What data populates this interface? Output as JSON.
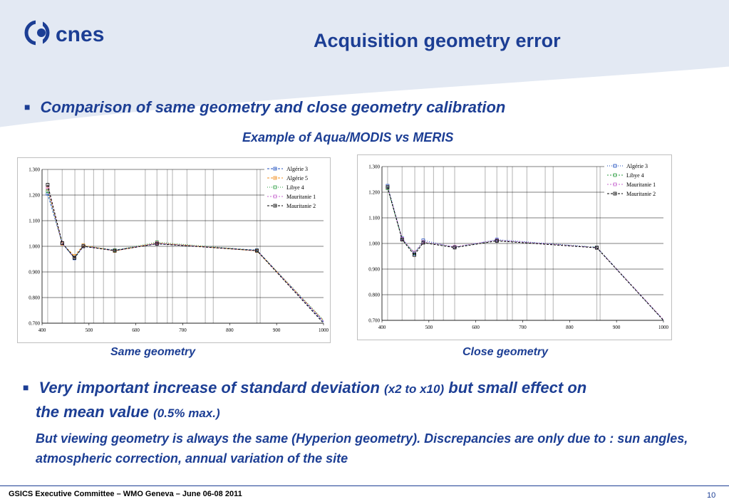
{
  "header": {
    "logo_text": "cnes",
    "title": "Acquisition geometry error"
  },
  "bullets": {
    "first": "Comparison of same geometry and close geometry calibration",
    "subtitle": "Example of Aqua/MODIS vs MERIS",
    "second_a": "Very important increase of standard deviation",
    "second_b": "(x2 to x10)",
    "second_c": "but small effect on",
    "second_d": "the mean value",
    "second_e": "(0.5% max.)",
    "paragraph": "But viewing geometry is always the same (Hyperion geometry). Discrepancies are only due to : sun angles, atmospheric correction, annual variation of the site"
  },
  "captions": {
    "left": "Same geometry",
    "right": "Close geometry"
  },
  "footer": {
    "left": "GSICS Executive Committee – WMO Geneva – June 06-08 2011",
    "page": "10"
  },
  "colors": {
    "brand": "#1c3e94",
    "band": "#e3e9f3"
  },
  "chart_data": [
    {
      "type": "line",
      "xlim": [
        400,
        1000
      ],
      "ylim": [
        0.7,
        1.3
      ],
      "xticks": [
        "400",
        "500",
        "600",
        "700",
        "800",
        "900",
        "1000"
      ],
      "yticks": [
        "0.700",
        "0.800",
        "0.900",
        "1.000",
        "1.100",
        "1.200",
        "1.300"
      ],
      "grid": "horizontal",
      "legend_position": "top-right",
      "vlines": [
        412,
        443,
        470,
        490,
        510,
        531,
        555,
        620,
        645,
        667,
        678,
        709,
        748,
        765,
        858,
        865
      ],
      "x": [
        412,
        443,
        469,
        488,
        555,
        645,
        858,
        1000
      ],
      "series": [
        {
          "name": "Algérie 3",
          "color": "#1f4fbf",
          "dash": "3,2",
          "values": [
            1.205,
            1.012,
            0.953,
            1.0,
            0.985,
            1.01,
            0.985,
            0.705
          ]
        },
        {
          "name": "Algérie 5",
          "color": "#f08c1c",
          "dash": "3,2",
          "values": [
            1.225,
            1.01,
            0.962,
            1.004,
            0.982,
            1.013,
            0.982,
            0.71
          ]
        },
        {
          "name": "Libye 4",
          "color": "#2e9e43",
          "dash": "1,2",
          "values": [
            1.215,
            1.012,
            0.957,
            1.002,
            0.985,
            1.016,
            0.984,
            0.712
          ]
        },
        {
          "name": "Mauritanie 1",
          "color": "#c86ad0",
          "dash": "2,2",
          "values": [
            1.23,
            1.012,
            0.956,
            1.001,
            0.983,
            1.012,
            0.983,
            0.708
          ]
        },
        {
          "name": "Mauritanie 2",
          "color": "#000000",
          "dash": "3,2",
          "values": [
            1.24,
            1.013,
            0.955,
            1.0,
            0.983,
            1.01,
            0.983,
            0.7
          ]
        }
      ]
    },
    {
      "type": "line",
      "xlim": [
        400,
        1000
      ],
      "ylim": [
        0.7,
        1.3
      ],
      "xticks": [
        "400",
        "500",
        "600",
        "700",
        "800",
        "900",
        "1000"
      ],
      "yticks": [
        "0.700",
        "0.800",
        "0.900",
        "1.000",
        "1.100",
        "1.200",
        "1.300"
      ],
      "grid": "horizontal",
      "legend_position": "top-right",
      "vlines": [
        412,
        443,
        470,
        490,
        510,
        531,
        555,
        620,
        645,
        667,
        678,
        709,
        748,
        765,
        858,
        865
      ],
      "x": [
        412,
        443,
        469,
        488,
        555,
        645,
        858,
        1000
      ],
      "series": [
        {
          "name": "Algérie 3",
          "color": "#1f4fbf",
          "dash": "1,2",
          "values": [
            1.225,
            1.02,
            0.96,
            1.012,
            0.985,
            1.015,
            0.985,
            0.7
          ]
        },
        {
          "name": "Libye 4",
          "color": "#2e9e43",
          "dash": "2,2",
          "values": [
            1.215,
            1.015,
            0.962,
            1.005,
            0.986,
            1.012,
            0.985,
            0.702
          ]
        },
        {
          "name": "Mauritanie 1",
          "color": "#c86ad0",
          "dash": "2,2",
          "values": [
            1.22,
            1.018,
            0.965,
            1.006,
            0.987,
            1.013,
            0.984,
            0.703
          ]
        },
        {
          "name": "Mauritanie 2",
          "color": "#000000",
          "dash": "3,2",
          "values": [
            1.22,
            1.015,
            0.955,
            1.003,
            0.984,
            1.01,
            0.983,
            0.7
          ]
        }
      ]
    }
  ]
}
